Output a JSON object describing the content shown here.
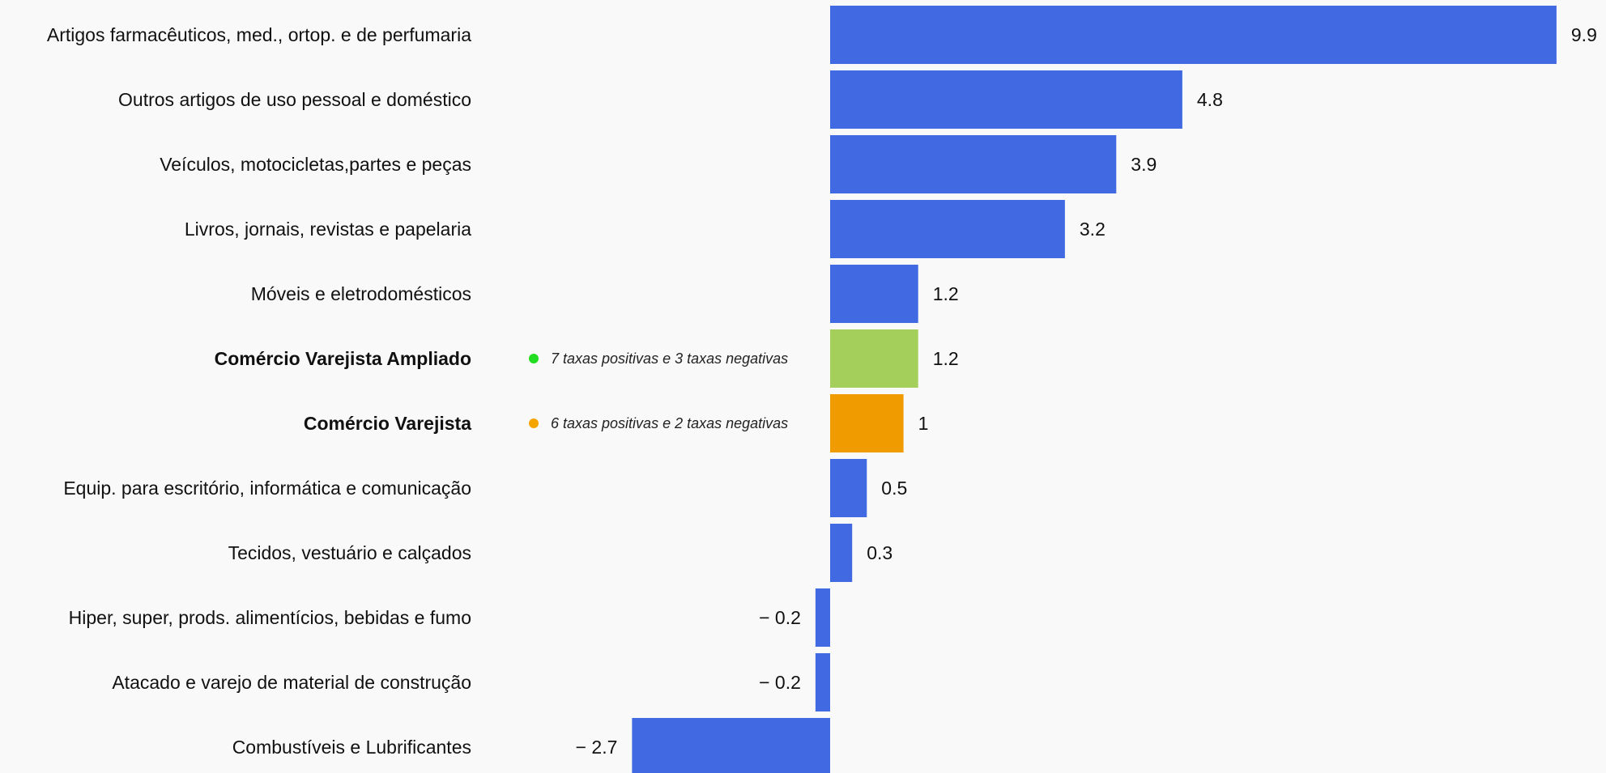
{
  "chart_data": {
    "type": "bar",
    "orientation": "horizontal",
    "title": "",
    "xlabel": "",
    "ylabel": "",
    "grid": false,
    "legend": "none",
    "xlim": [
      -4.0,
      10.0
    ],
    "categories": [
      "Artigos farmacêuticos, med., ortop. e de perfumaria",
      "Outros artigos de uso pessoal e doméstico",
      "Veículos, motocicletas,partes e peças",
      "Livros, jornais, revistas e papelaria",
      "Móveis e eletrodomésticos",
      "Comércio Varejista Ampliado",
      "Comércio Varejista",
      "Equip. para escritório, informática e comunicação",
      "Tecidos, vestuário e calçados",
      "Hiper, super, prods.  alimentícios, bebidas e fumo",
      "Atacado e varejo de material de construção",
      "Combustíveis e Lubrificantes"
    ],
    "values": [
      9.9,
      4.8,
      3.9,
      3.2,
      1.2,
      1.2,
      1,
      0.5,
      0.3,
      -0.2,
      -0.2,
      -2.7
    ],
    "value_labels": [
      "9.9",
      "4.8",
      "3.9",
      "3.2",
      "1.2",
      "1.2",
      "1",
      "0.5",
      "0.3",
      "− 0.2",
      "− 0.2",
      "− 2.7"
    ],
    "bold_categories": [
      "Comércio Varejista Ampliado",
      "Comércio Varejista"
    ],
    "bar_colors": {
      "default": "#4169e1",
      "Comércio Varejista Ampliado": "#a3cf5a",
      "Comércio Varejista": "#f09c00"
    },
    "annotations": [
      {
        "category": "Comércio Varejista Ampliado",
        "text": "7 taxas positivas e 3 taxas negativas",
        "dot_color": "#22dd22"
      },
      {
        "category": "Comércio Varejista",
        "text": "6 taxas positivas e 2 taxas negativas",
        "dot_color": "#f5a500"
      }
    ]
  }
}
